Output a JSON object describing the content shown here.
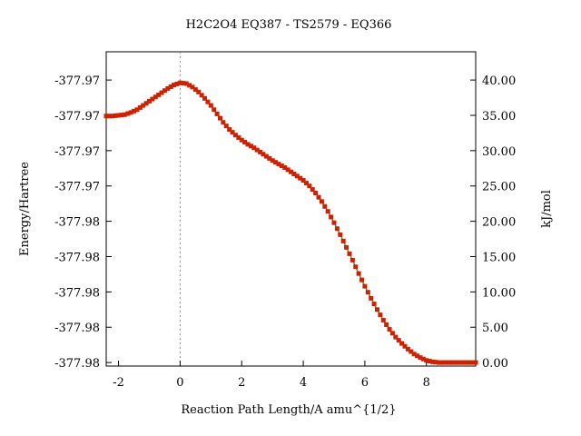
{
  "chart_data": {
    "type": "line",
    "title": "H2C2O4    EQ387 - TS2579 - EQ366",
    "xlabel": "Reaction  Path  Length/A  amu^{1/2}",
    "ylabel_left": "Energy/Hartree",
    "ylabel_right": "kJ/mol",
    "xlim": [
      -2.4,
      9.6
    ],
    "ylim_right": [
      -0.5,
      44.0
    ],
    "x_ticks": [
      -2,
      0,
      2,
      4,
      6,
      8
    ],
    "x_tick_labels": [
      "-2",
      "0",
      "2",
      "4",
      "6",
      "8"
    ],
    "left_ticks_kjmol": [
      0,
      5,
      10,
      15,
      20,
      25,
      30,
      35,
      40
    ],
    "left_tick_labels": [
      "-377.98",
      "-377.98",
      "-377.98",
      "-377.98",
      "-377.98",
      "-377.97",
      "-377.97",
      "-377.97",
      "-377.97"
    ],
    "right_ticks": [
      0,
      5,
      10,
      15,
      20,
      25,
      30,
      35,
      40
    ],
    "right_tick_labels": [
      "0.00",
      "5.00",
      "10.00",
      "15.00",
      "20.00",
      "25.00",
      "30.00",
      "35.00",
      "40.00"
    ],
    "ts_marker_x": 0,
    "grid": false,
    "marker_color": "#cc2200",
    "line_color": "#2a8a2a",
    "series": [
      {
        "x": [
          -2.4,
          -2.2,
          -2.0,
          -1.8,
          -1.6,
          -1.4,
          -1.2,
          -1.0,
          -0.8,
          -0.6,
          -0.4,
          -0.2,
          0.0,
          0.2,
          0.4,
          0.6,
          0.8,
          1.0,
          1.2,
          1.4,
          1.6,
          1.8,
          2.0,
          2.2,
          2.4,
          2.6,
          2.8,
          3.0,
          3.2,
          3.4,
          3.6,
          3.8,
          4.0,
          4.2,
          4.4,
          4.6,
          4.8,
          5.0,
          5.2,
          5.4,
          5.6,
          5.8,
          6.0,
          6.2,
          6.4,
          6.6,
          6.8,
          7.0,
          7.2,
          7.4,
          7.6,
          7.8,
          8.0,
          8.2,
          8.4,
          8.6,
          8.8,
          9.0,
          9.2,
          9.4,
          9.6
        ],
        "y": [
          34.9,
          34.9,
          35.0,
          35.1,
          35.4,
          35.8,
          36.4,
          37.0,
          37.6,
          38.2,
          38.8,
          39.3,
          39.6,
          39.5,
          39.0,
          38.3,
          37.4,
          36.4,
          35.2,
          34.0,
          33.0,
          32.2,
          31.5,
          30.9,
          30.4,
          29.8,
          29.2,
          28.6,
          28.1,
          27.6,
          27.0,
          26.4,
          25.8,
          25.0,
          24.0,
          22.8,
          21.4,
          19.8,
          18.1,
          16.3,
          14.5,
          12.6,
          10.8,
          9.1,
          7.5,
          6.0,
          4.7,
          3.6,
          2.7,
          1.9,
          1.2,
          0.7,
          0.3,
          0.1,
          0.0,
          0.0,
          0.0,
          0.0,
          0.0,
          0.0,
          0.0
        ]
      }
    ]
  }
}
